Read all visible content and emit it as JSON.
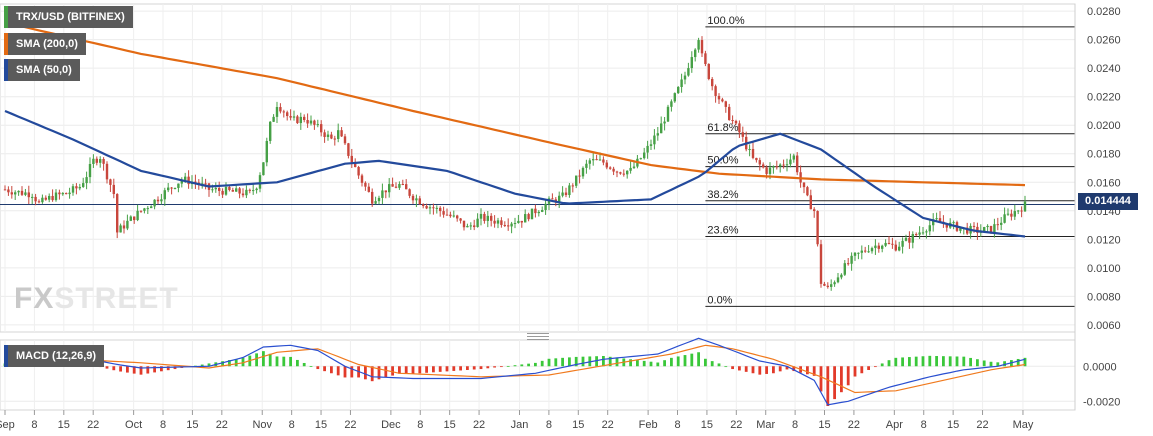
{
  "chart_data": [
    {
      "type": "candlestick",
      "title": "TRX/USD (BITFINEX)",
      "legend": [
        {
          "name": "TRX/USD (BITFINEX)",
          "color": "#46a046"
        },
        {
          "name": "SMA (200,0)",
          "color": "#e26a13"
        },
        {
          "name": "SMA (50,0)",
          "color": "#234a9c"
        }
      ],
      "ylim": [
        0.0055,
        0.0285
      ],
      "yticks": [
        "0.0060",
        "0.0080",
        "0.0100",
        "0.0120",
        "0.0140",
        "0.0160",
        "0.0180",
        "0.0200",
        "0.0220",
        "0.0240",
        "0.0260",
        "0.0280"
      ],
      "ytick_values": [
        0.006,
        0.008,
        0.01,
        0.012,
        0.014,
        0.016,
        0.018,
        0.02,
        0.022,
        0.024,
        0.026,
        0.028
      ],
      "last_price": {
        "value": 0.014444,
        "label": "0.014444"
      },
      "ohlc_index_range": [
        0,
        240
      ],
      "close_path": [
        [
          0,
          0.0155
        ],
        [
          4,
          0.0153
        ],
        [
          8,
          0.0152
        ],
        [
          10,
          0.0145
        ],
        [
          14,
          0.015
        ],
        [
          18,
          0.0152
        ],
        [
          22,
          0.0157
        ],
        [
          24,
          0.0165
        ],
        [
          26,
          0.0175
        ],
        [
          28,
          0.0178
        ],
        [
          30,
          0.0165
        ],
        [
          32,
          0.0152
        ],
        [
          33,
          0.0125
        ],
        [
          36,
          0.0132
        ],
        [
          40,
          0.014
        ],
        [
          44,
          0.0147
        ],
        [
          48,
          0.0155
        ],
        [
          52,
          0.0162
        ],
        [
          56,
          0.016
        ],
        [
          60,
          0.0155
        ],
        [
          64,
          0.0154
        ],
        [
          68,
          0.0153
        ],
        [
          72,
          0.0152
        ],
        [
          74,
          0.0158
        ],
        [
          76,
          0.0175
        ],
        [
          78,
          0.02
        ],
        [
          80,
          0.0215
        ],
        [
          82,
          0.021
        ],
        [
          84,
          0.0203
        ],
        [
          88,
          0.0205
        ],
        [
          92,
          0.0198
        ],
        [
          96,
          0.019
        ],
        [
          98,
          0.0195
        ],
        [
          100,
          0.0185
        ],
        [
          104,
          0.0165
        ],
        [
          108,
          0.0148
        ],
        [
          112,
          0.0155
        ],
        [
          116,
          0.0158
        ],
        [
          120,
          0.015
        ],
        [
          124,
          0.0144
        ],
        [
          128,
          0.014
        ],
        [
          132,
          0.0135
        ],
        [
          136,
          0.0128
        ],
        [
          140,
          0.0135
        ],
        [
          144,
          0.0133
        ],
        [
          148,
          0.0132
        ],
        [
          152,
          0.0134
        ],
        [
          156,
          0.014
        ],
        [
          160,
          0.0146
        ],
        [
          164,
          0.015
        ],
        [
          168,
          0.0162
        ],
        [
          172,
          0.0175
        ],
        [
          176,
          0.0174
        ],
        [
          180,
          0.0168
        ],
        [
          184,
          0.0168
        ],
        [
          188,
          0.018
        ],
        [
          192,
          0.0195
        ],
        [
          196,
          0.0215
        ],
        [
          200,
          0.0235
        ],
        [
          202,
          0.025
        ],
        [
          204,
          0.0262
        ],
        [
          205,
          0.0248
        ],
        [
          208,
          0.0228
        ],
        [
          212,
          0.021
        ],
        [
          216,
          0.0195
        ],
        [
          220,
          0.0176
        ],
        [
          224,
          0.0168
        ],
        [
          228,
          0.0172
        ],
        [
          232,
          0.0178
        ],
        [
          234,
          0.016
        ],
        [
          236,
          0.0148
        ],
        [
          238,
          0.014
        ],
        [
          240,
          0.009
        ],
        [
          242,
          0.0085
        ],
        [
          246,
          0.0098
        ],
        [
          250,
          0.0108
        ],
        [
          254,
          0.0114
        ],
        [
          258,
          0.0117
        ],
        [
          262,
          0.0115
        ],
        [
          266,
          0.012
        ],
        [
          270,
          0.0127
        ],
        [
          274,
          0.0133
        ],
        [
          278,
          0.013
        ],
        [
          282,
          0.0127
        ],
        [
          286,
          0.0126
        ],
        [
          290,
          0.0127
        ],
        [
          294,
          0.0135
        ],
        [
          298,
          0.0141
        ],
        [
          300,
          0.0144
        ]
      ],
      "sma200": [
        [
          0,
          0.0272
        ],
        [
          40,
          0.025
        ],
        [
          80,
          0.0233
        ],
        [
          120,
          0.021
        ],
        [
          160,
          0.0188
        ],
        [
          190,
          0.0172
        ],
        [
          210,
          0.0166
        ],
        [
          240,
          0.0162
        ],
        [
          270,
          0.016
        ],
        [
          300,
          0.0158
        ]
      ],
      "sma50": [
        [
          0,
          0.021
        ],
        [
          20,
          0.019
        ],
        [
          40,
          0.0168
        ],
        [
          60,
          0.0157
        ],
        [
          80,
          0.016
        ],
        [
          100,
          0.0173
        ],
        [
          110,
          0.0175
        ],
        [
          130,
          0.0168
        ],
        [
          150,
          0.0152
        ],
        [
          165,
          0.0145
        ],
        [
          190,
          0.0148
        ],
        [
          205,
          0.0165
        ],
        [
          215,
          0.0185
        ],
        [
          228,
          0.0194
        ],
        [
          240,
          0.0183
        ],
        [
          255,
          0.0158
        ],
        [
          270,
          0.0135
        ],
        [
          285,
          0.0126
        ],
        [
          300,
          0.0122
        ]
      ],
      "fibonacci": [
        {
          "label": "100.0%",
          "value": 0.0269
        },
        {
          "label": "61.8%",
          "value": 0.0194
        },
        {
          "label": "50.0%",
          "value": 0.0171
        },
        {
          "label": "38.2%",
          "value": 0.0147
        },
        {
          "label": "23.6%",
          "value": 0.0122
        },
        {
          "label": "0.0%",
          "value": 0.0073
        }
      ],
      "xticks": [
        "Sep",
        "8",
        "15",
        "22",
        "Oct",
        "8",
        "15",
        "22",
        "Nov",
        "8",
        "15",
        "22",
        "Dec",
        "8",
        "15",
        "22",
        "Jan",
        "8",
        "15",
        "22",
        "Feb",
        "8",
        "15",
        "22",
        "Mar",
        "8",
        "15",
        "22",
        "Apr",
        "8",
        "15",
        "22",
        "May"
      ],
      "xtick_positions": [
        0,
        8,
        16,
        24,
        35,
        43,
        51,
        59,
        70,
        78,
        86,
        94,
        105,
        113,
        121,
        129,
        140,
        148,
        156,
        164,
        175,
        183,
        191,
        199,
        207,
        215,
        223,
        231,
        242,
        250,
        258,
        266,
        277
      ]
    },
    {
      "type": "macd",
      "title": "MACD (12,26,9)",
      "ylim": [
        -0.0025,
        0.0015
      ],
      "yticks": [
        "0.0000",
        "-0.0020"
      ],
      "ytick_values": [
        0.0,
        -0.002
      ],
      "macd_line": [
        [
          0,
          0.0003
        ],
        [
          20,
          0.0006
        ],
        [
          33,
          0.0001
        ],
        [
          40,
          -0.0001
        ],
        [
          60,
          0.0
        ],
        [
          70,
          0.0005
        ],
        [
          76,
          0.0011
        ],
        [
          84,
          0.0012
        ],
        [
          92,
          0.0009
        ],
        [
          100,
          0.0
        ],
        [
          108,
          -0.0006
        ],
        [
          120,
          -0.0007
        ],
        [
          140,
          -0.0007
        ],
        [
          156,
          -0.0004
        ],
        [
          168,
          0.0001
        ],
        [
          176,
          0.0004
        ],
        [
          192,
          0.0007
        ],
        [
          200,
          0.0013
        ],
        [
          204,
          0.0016
        ],
        [
          210,
          0.0012
        ],
        [
          222,
          0.0003
        ],
        [
          230,
          0.0
        ],
        [
          238,
          -0.0008
        ],
        [
          242,
          -0.0022
        ],
        [
          248,
          -0.002
        ],
        [
          260,
          -0.0012
        ],
        [
          272,
          -0.0006
        ],
        [
          282,
          -0.0002
        ],
        [
          292,
          0.0
        ],
        [
          300,
          0.0004
        ]
      ],
      "signal_line": [
        [
          0,
          0.0002
        ],
        [
          20,
          0.0004
        ],
        [
          40,
          0.0002
        ],
        [
          60,
          -0.0001
        ],
        [
          70,
          0.0002
        ],
        [
          80,
          0.0008
        ],
        [
          92,
          0.001
        ],
        [
          104,
          0.0001
        ],
        [
          116,
          -0.0004
        ],
        [
          140,
          -0.0006
        ],
        [
          160,
          -0.0005
        ],
        [
          172,
          -0.0001
        ],
        [
          184,
          0.0003
        ],
        [
          196,
          0.0007
        ],
        [
          206,
          0.0012
        ],
        [
          214,
          0.001
        ],
        [
          226,
          0.0004
        ],
        [
          240,
          -0.0006
        ],
        [
          250,
          -0.0015
        ],
        [
          262,
          -0.0014
        ],
        [
          276,
          -0.0008
        ],
        [
          290,
          -0.0002
        ],
        [
          300,
          0.0001
        ]
      ]
    }
  ],
  "logo": {
    "fx": "FX",
    "street": "STREET"
  }
}
